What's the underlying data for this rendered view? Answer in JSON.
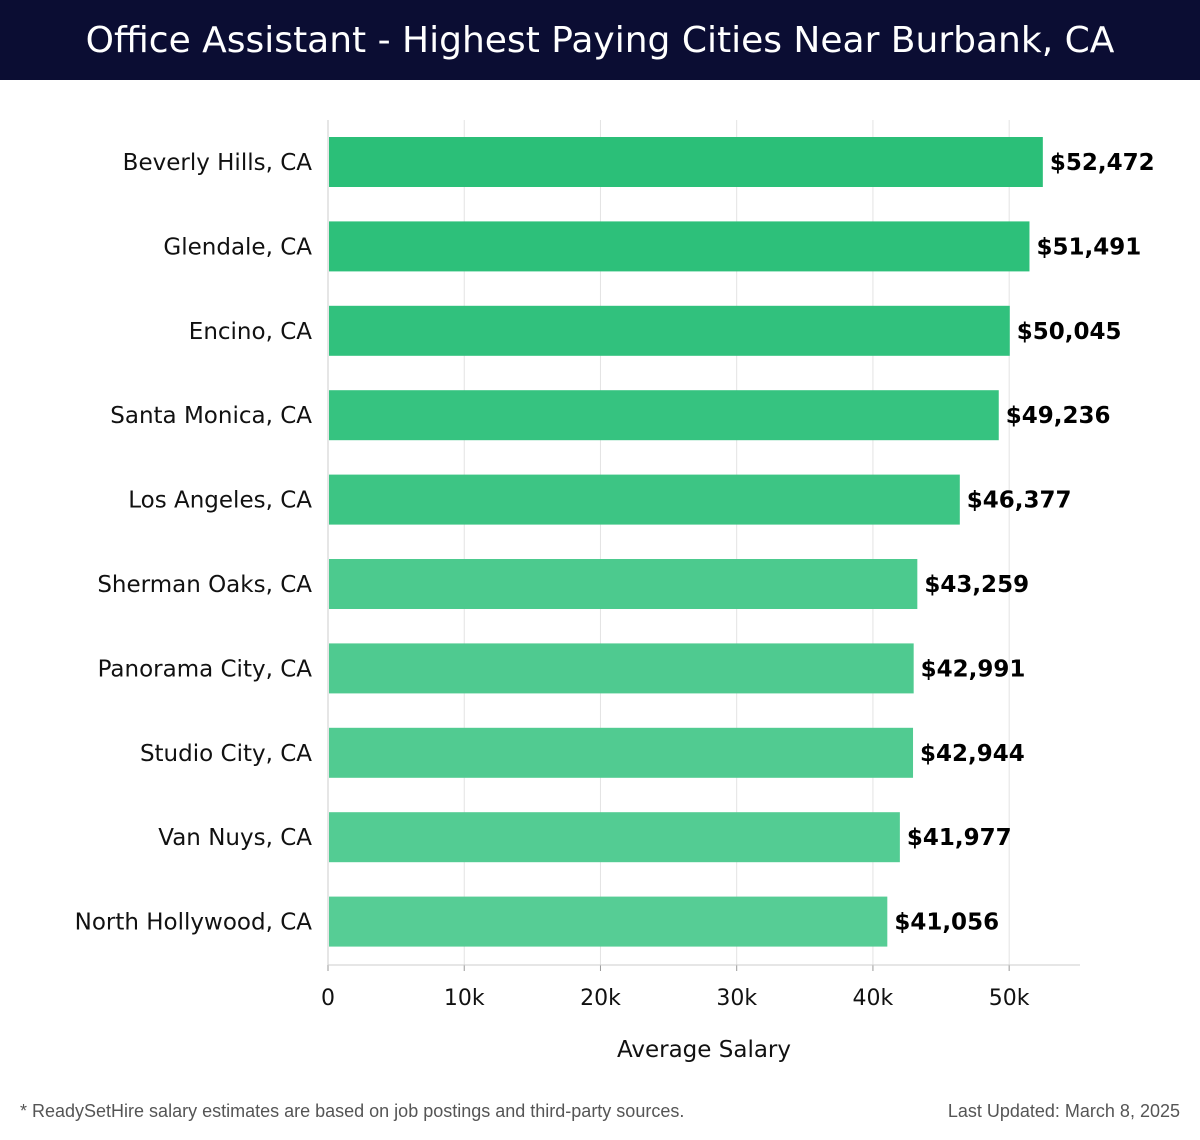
{
  "header": {
    "title": "Office Assistant - Highest Paying Cities Near Burbank, CA"
  },
  "chart_data": {
    "type": "bar",
    "orientation": "horizontal",
    "title": "Office Assistant - Highest Paying Cities Near Burbank, CA",
    "categories": [
      "Beverly Hills, CA",
      "Glendale, CA",
      "Encino, CA",
      "Santa Monica, CA",
      "Los Angeles, CA",
      "Sherman Oaks, CA",
      "Panorama City, CA",
      "Studio City, CA",
      "Van Nuys, CA",
      "North Hollywood, CA"
    ],
    "values": [
      52472,
      51491,
      50045,
      49236,
      46377,
      43259,
      42991,
      42944,
      41977,
      41056
    ],
    "value_labels": [
      "$52,472",
      "$51,491",
      "$50,045",
      "$49,236",
      "$46,377",
      "$43,259",
      "$42,991",
      "$42,944",
      "$41,977",
      "$41,056"
    ],
    "bar_colors": [
      "#2bbf78",
      "#2dc07a",
      "#31c17d",
      "#36c380",
      "#3dc584",
      "#4cca8e",
      "#4fca90",
      "#51cb91",
      "#53cc93",
      "#56cd95"
    ],
    "xlabel": "Average Salary",
    "ylabel": "",
    "xlim": [
      0,
      55200
    ],
    "xticks": [
      0,
      10000,
      20000,
      30000,
      40000,
      50000
    ],
    "xtick_labels": [
      "0",
      "10k",
      "20k",
      "30k",
      "40k",
      "50k"
    ],
    "grid": "vertical"
  },
  "footer": {
    "note": "* ReadySetHire salary estimates are based on job postings and third-party sources.",
    "updated": "Last Updated: March 8, 2025"
  },
  "colors": {
    "header_bg": "#0b0d33",
    "grid": "#e3e3e3",
    "axis": "#cccccc"
  }
}
